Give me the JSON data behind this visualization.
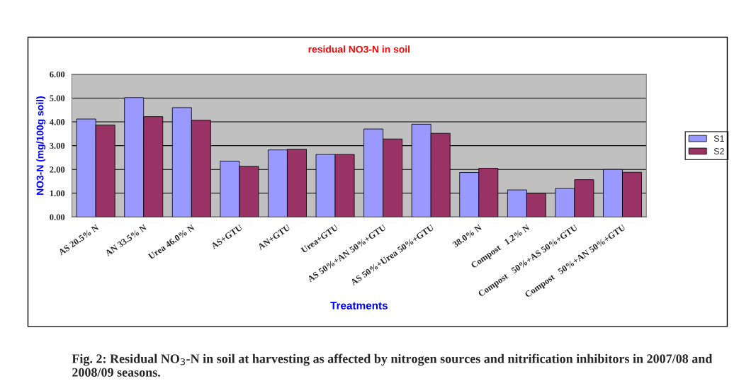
{
  "chart_data": {
    "type": "bar",
    "title": "residual NO3-N in soil",
    "xlabel": "Treatments",
    "ylabel": "NO3-N (mg/100g soil)",
    "categories": [
      "AS 20.5% N",
      "AN 33.5% N",
      "Urea 46.0% N",
      "AS+GTU",
      "AN+GTU",
      "Urea+GTU",
      "AS 50%+AN 50%+GTU",
      "AS 50%+Urea 50%+GTU",
      "38.0% N",
      "Compost   1.2% N",
      "Compost   50%+AS 50%+GTU",
      "Compost   50%+AN 50%+GTU"
    ],
    "series": [
      {
        "name": "S1",
        "color": "#9999ff",
        "values": [
          4.12,
          5.02,
          4.6,
          2.35,
          2.82,
          2.63,
          3.7,
          3.9,
          1.87,
          1.14,
          1.2,
          2.0
        ]
      },
      {
        "name": "S2",
        "color": "#993366",
        "values": [
          3.87,
          4.22,
          4.07,
          2.13,
          2.85,
          2.63,
          3.28,
          3.52,
          2.05,
          1.0,
          1.57,
          1.88
        ]
      }
    ],
    "ylim": [
      0,
      6
    ],
    "yticks": [
      {
        "value": 0,
        "label": "0.00"
      },
      {
        "value": 1,
        "label": "1.00"
      },
      {
        "value": 2,
        "label": "2.00"
      },
      {
        "value": 3,
        "label": "3.00"
      },
      {
        "value": 4,
        "label": "4.00"
      },
      {
        "value": 5,
        "label": "5.00"
      },
      {
        "value": 6,
        "label": "6.00"
      }
    ],
    "grid": "y",
    "legend": "right",
    "annotations": [
      "Fig. 2: Residual NO$_{3}$-N in soil at harvesting as affected by nitrogen sources and nitrification inhibitors in 2007/08 and 2008/09 seasons."
    ]
  }
}
